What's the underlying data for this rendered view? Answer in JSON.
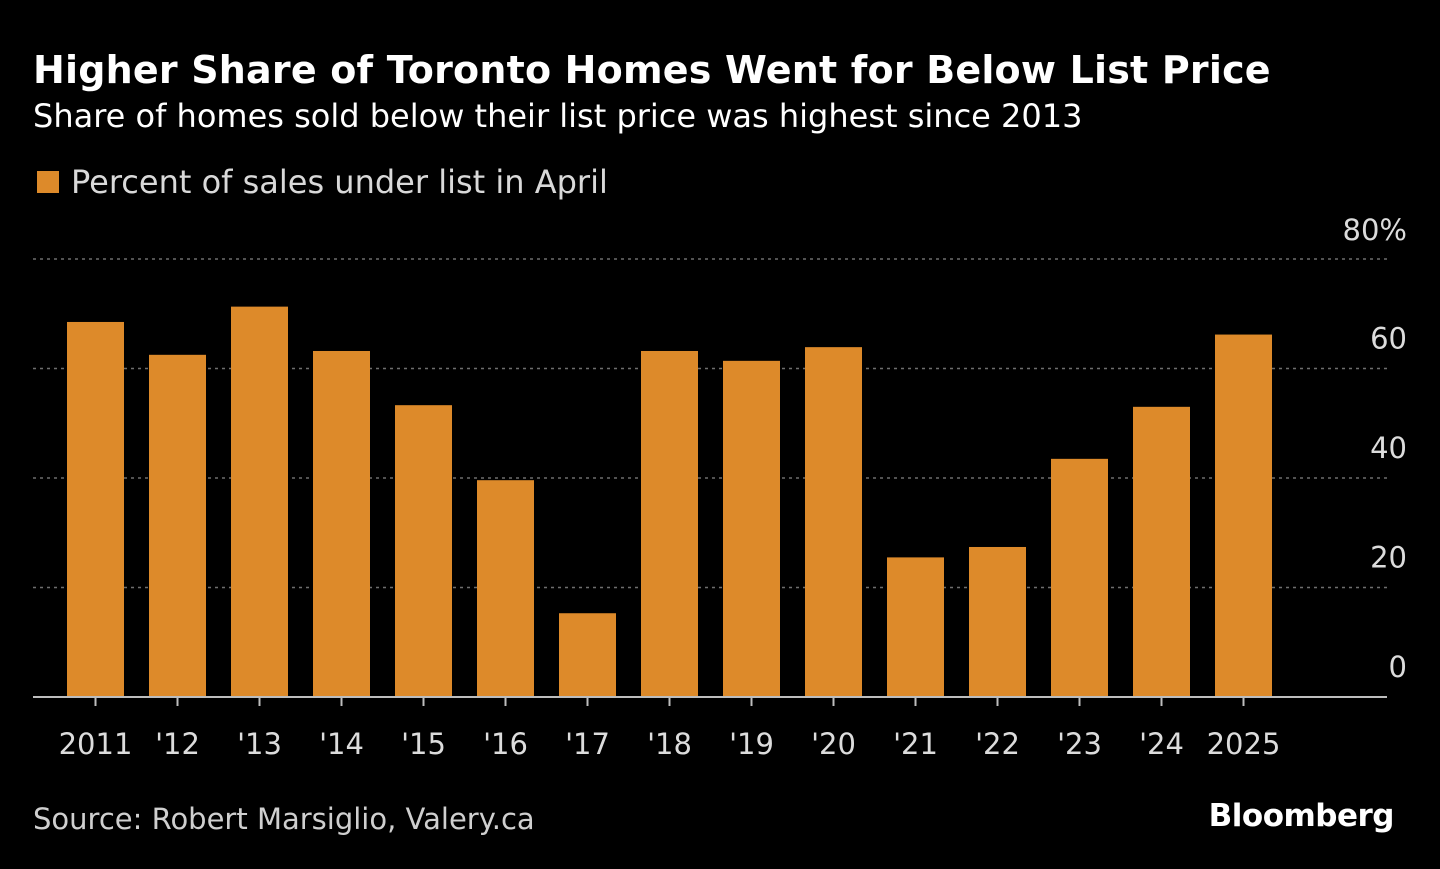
{
  "chart_data": {
    "type": "bar",
    "title": "Higher Share of Toronto Homes Went for Below List Price",
    "subtitle": "Share of homes sold below their list price was highest since 2013",
    "categories": [
      "2011",
      "'12",
      "'13",
      "'14",
      "'15",
      "'16",
      "'17",
      "'18",
      "'19",
      "'20",
      "'21",
      "'22",
      "'23",
      "'24",
      "2025"
    ],
    "series": [
      {
        "name": "Percent of sales under list in April",
        "color": "#dd8a2a",
        "values": [
          68.5,
          62.5,
          71.3,
          63.2,
          53.3,
          39.6,
          15.3,
          63.2,
          61.4,
          63.9,
          25.5,
          27.4,
          43.5,
          53.0,
          66.2
        ]
      }
    ],
    "yticks": [
      0,
      20,
      40,
      60,
      80
    ],
    "ytick_labels": [
      "0",
      "20",
      "40",
      "60",
      "80%"
    ],
    "ylim": [
      0,
      80
    ],
    "y_axis_position": "right",
    "grid": "horizontal dotted",
    "legend_position": "top-left"
  },
  "source": "Source: Robert Marsiglio, Valery.ca",
  "brand": "Bloomberg",
  "colors": {
    "background": "#000000",
    "bar": "#dd8a2a",
    "grid": "#6e6e6e",
    "axis": "#bdbdbd",
    "tick_text": "#dcdcdc"
  }
}
